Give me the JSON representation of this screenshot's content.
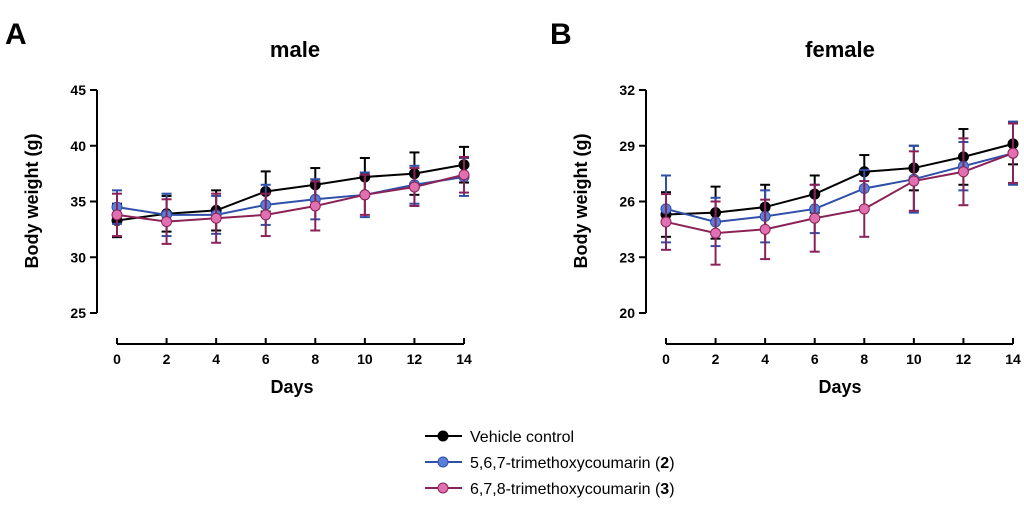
{
  "figure": {
    "legend": [
      {
        "label": "Vehicle control",
        "compound": "",
        "color": "#000000"
      },
      {
        "label": "5,6,7-trimethoxycoumarin (",
        "compound": "2",
        "suffix": ")",
        "color": "#3a5bb8"
      },
      {
        "label": "6,7,8-trimethoxycoumarin (",
        "compound": "3",
        "suffix": ")",
        "color": "#c4407e"
      }
    ],
    "marker_colors": {
      "vehicle": "#000000",
      "c2": "#5b7fd6",
      "c3": "#e070b0"
    },
    "line_colors": {
      "vehicle": "#000000",
      "c2": "#2f4fa8",
      "c3": "#8b2257"
    }
  },
  "chart_data": [
    {
      "type": "line",
      "panel_letter": "A",
      "title": "male",
      "xlabel": "Days",
      "ylabel": "Body weight (g)",
      "x": [
        0,
        2,
        4,
        6,
        8,
        10,
        12,
        14
      ],
      "xticks": [
        "0",
        "2",
        "4",
        "6",
        "8",
        "10",
        "12",
        "14"
      ],
      "xlim": [
        0,
        14
      ],
      "ylim": [
        25,
        45
      ],
      "yticks": [
        "25",
        "30",
        "35",
        "40",
        "45"
      ],
      "series": [
        {
          "name": "Vehicle control",
          "values": [
            33.3,
            33.9,
            34.2,
            35.9,
            36.5,
            37.2,
            37.5,
            38.3
          ],
          "errors": [
            1.5,
            1.6,
            1.8,
            1.8,
            1.5,
            1.7,
            1.9,
            1.6
          ]
        },
        {
          "name": "5,6,7-trimethoxycoumarin (2)",
          "values": [
            34.5,
            33.8,
            33.8,
            34.7,
            35.2,
            35.6,
            36.5,
            37.2
          ],
          "errors": [
            1.5,
            1.9,
            1.7,
            1.8,
            1.8,
            2.0,
            1.7,
            1.7
          ]
        },
        {
          "name": "6,7,8-trimethoxycoumarin (3)",
          "values": [
            33.8,
            33.2,
            33.5,
            33.8,
            34.6,
            35.6,
            36.3,
            37.4
          ],
          "errors": [
            1.9,
            2.0,
            2.2,
            1.9,
            2.2,
            1.8,
            1.7,
            1.6
          ]
        }
      ]
    },
    {
      "type": "line",
      "panel_letter": "B",
      "title": "female",
      "xlabel": "Days",
      "ylabel": "Body weight (g)",
      "x": [
        0,
        2,
        4,
        6,
        8,
        10,
        12,
        14
      ],
      "xticks": [
        "0",
        "2",
        "4",
        "6",
        "8",
        "10",
        "12",
        "14"
      ],
      "xlim": [
        0,
        14
      ],
      "ylim": [
        20,
        32
      ],
      "yticks": [
        "20",
        "23",
        "26",
        "29",
        "32"
      ],
      "series": [
        {
          "name": "Vehicle control",
          "values": [
            25.3,
            25.4,
            25.7,
            26.4,
            27.6,
            27.8,
            28.4,
            29.1
          ],
          "errors": [
            1.2,
            1.4,
            1.2,
            1.0,
            0.9,
            1.2,
            1.5,
            1.1
          ]
        },
        {
          "name": "5,6,7-trimethoxycoumarin (2)",
          "values": [
            25.6,
            24.9,
            25.2,
            25.6,
            26.7,
            27.2,
            27.9,
            28.6
          ],
          "errors": [
            1.8,
            1.3,
            1.4,
            1.3,
            1.0,
            1.8,
            1.3,
            1.7
          ]
        },
        {
          "name": "6,7,8-trimethoxycoumarin (3)",
          "values": [
            24.9,
            24.3,
            24.5,
            25.1,
            25.6,
            27.1,
            27.6,
            28.6
          ],
          "errors": [
            1.5,
            1.7,
            1.6,
            1.8,
            1.5,
            1.6,
            1.8,
            1.6
          ]
        }
      ]
    }
  ]
}
